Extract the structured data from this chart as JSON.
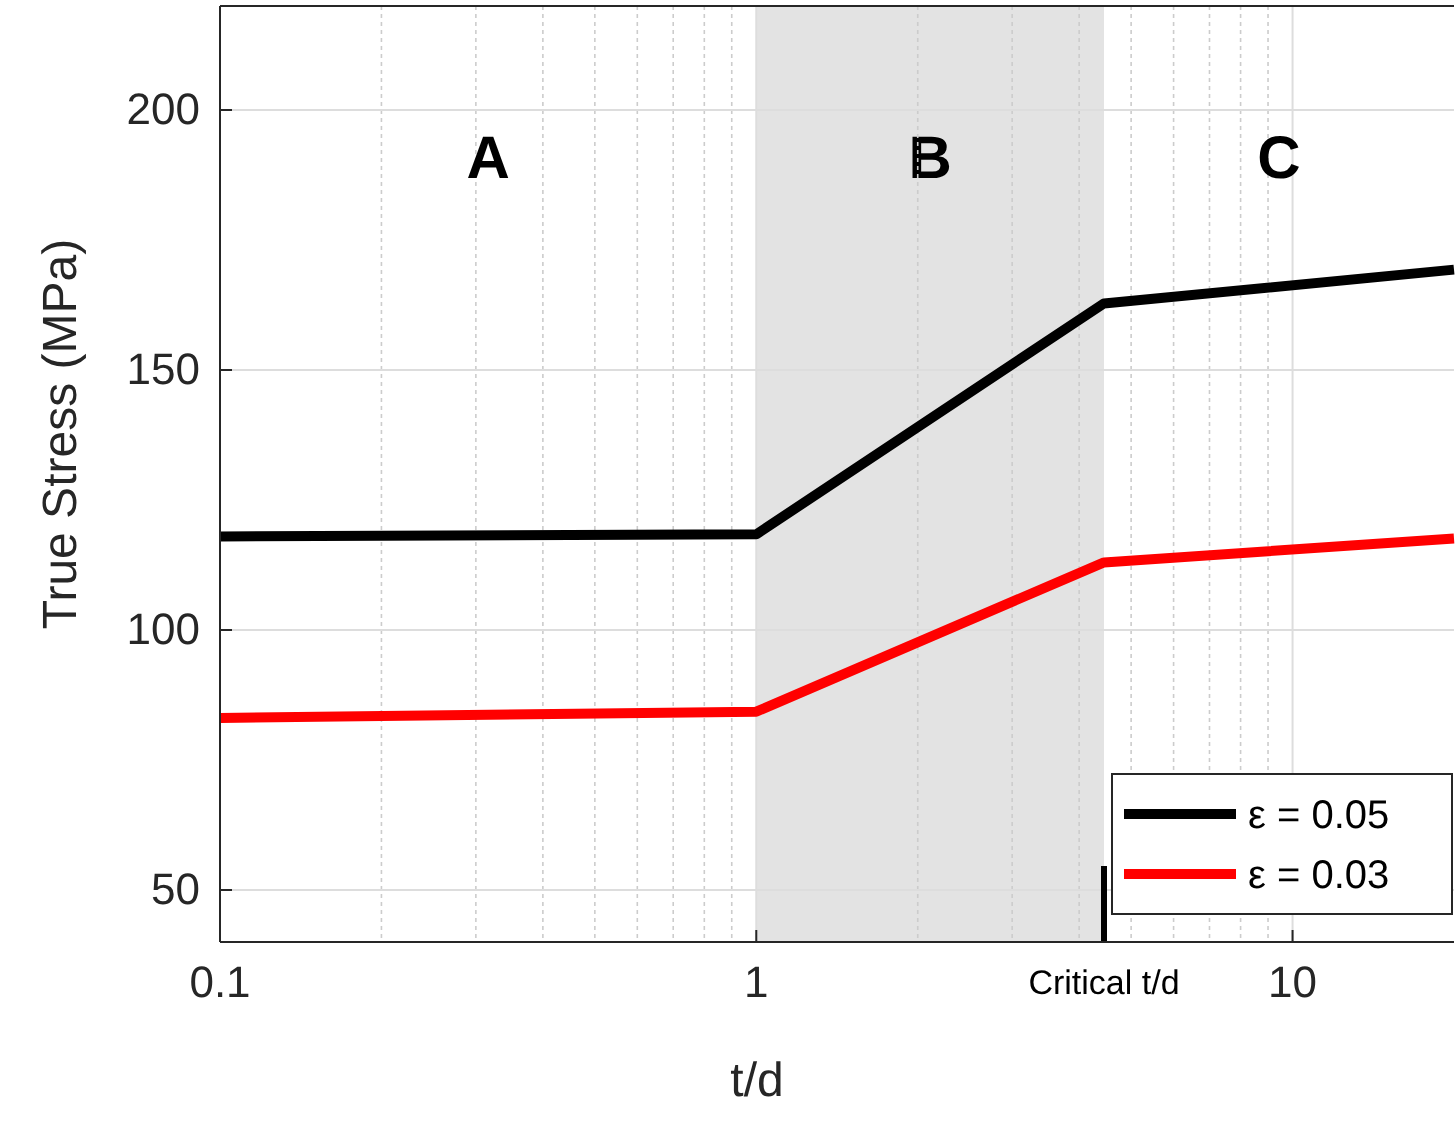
{
  "chart_data": {
    "type": "line",
    "xlabel": "t/d",
    "ylabel": "True Stress (MPa)",
    "log": "x",
    "xlim": [
      0.1,
      20
    ],
    "xticks": [
      0.1,
      1,
      10
    ],
    "ylim": [
      40,
      220
    ],
    "yticks": [
      50,
      100,
      150,
      200
    ],
    "grid": true,
    "legend": "bottom right",
    "line_style": "solid",
    "marker": "none",
    "series": [
      {
        "name": "ε = 0.05",
        "color": "#000000",
        "x": [
          0.1,
          1,
          4.45,
          20
        ],
        "values": [
          118,
          118.4,
          162.8,
          169.3
        ]
      },
      {
        "name": "ε = 0.03",
        "color": "#ff0000",
        "x": [
          0.1,
          1,
          4.45,
          20
        ],
        "values": [
          83.1,
          84.3,
          113,
          117.6
        ]
      }
    ],
    "bands": [
      {
        "axis": "x",
        "from": 1,
        "to": 4.45,
        "label": "B",
        "color": "#e3e3e3"
      }
    ],
    "ref_lines": [
      {
        "axis": "x",
        "value": 4.45,
        "label": "Critical t/d",
        "color": "#000000"
      }
    ],
    "annotations": [
      "A",
      "C"
    ]
  }
}
